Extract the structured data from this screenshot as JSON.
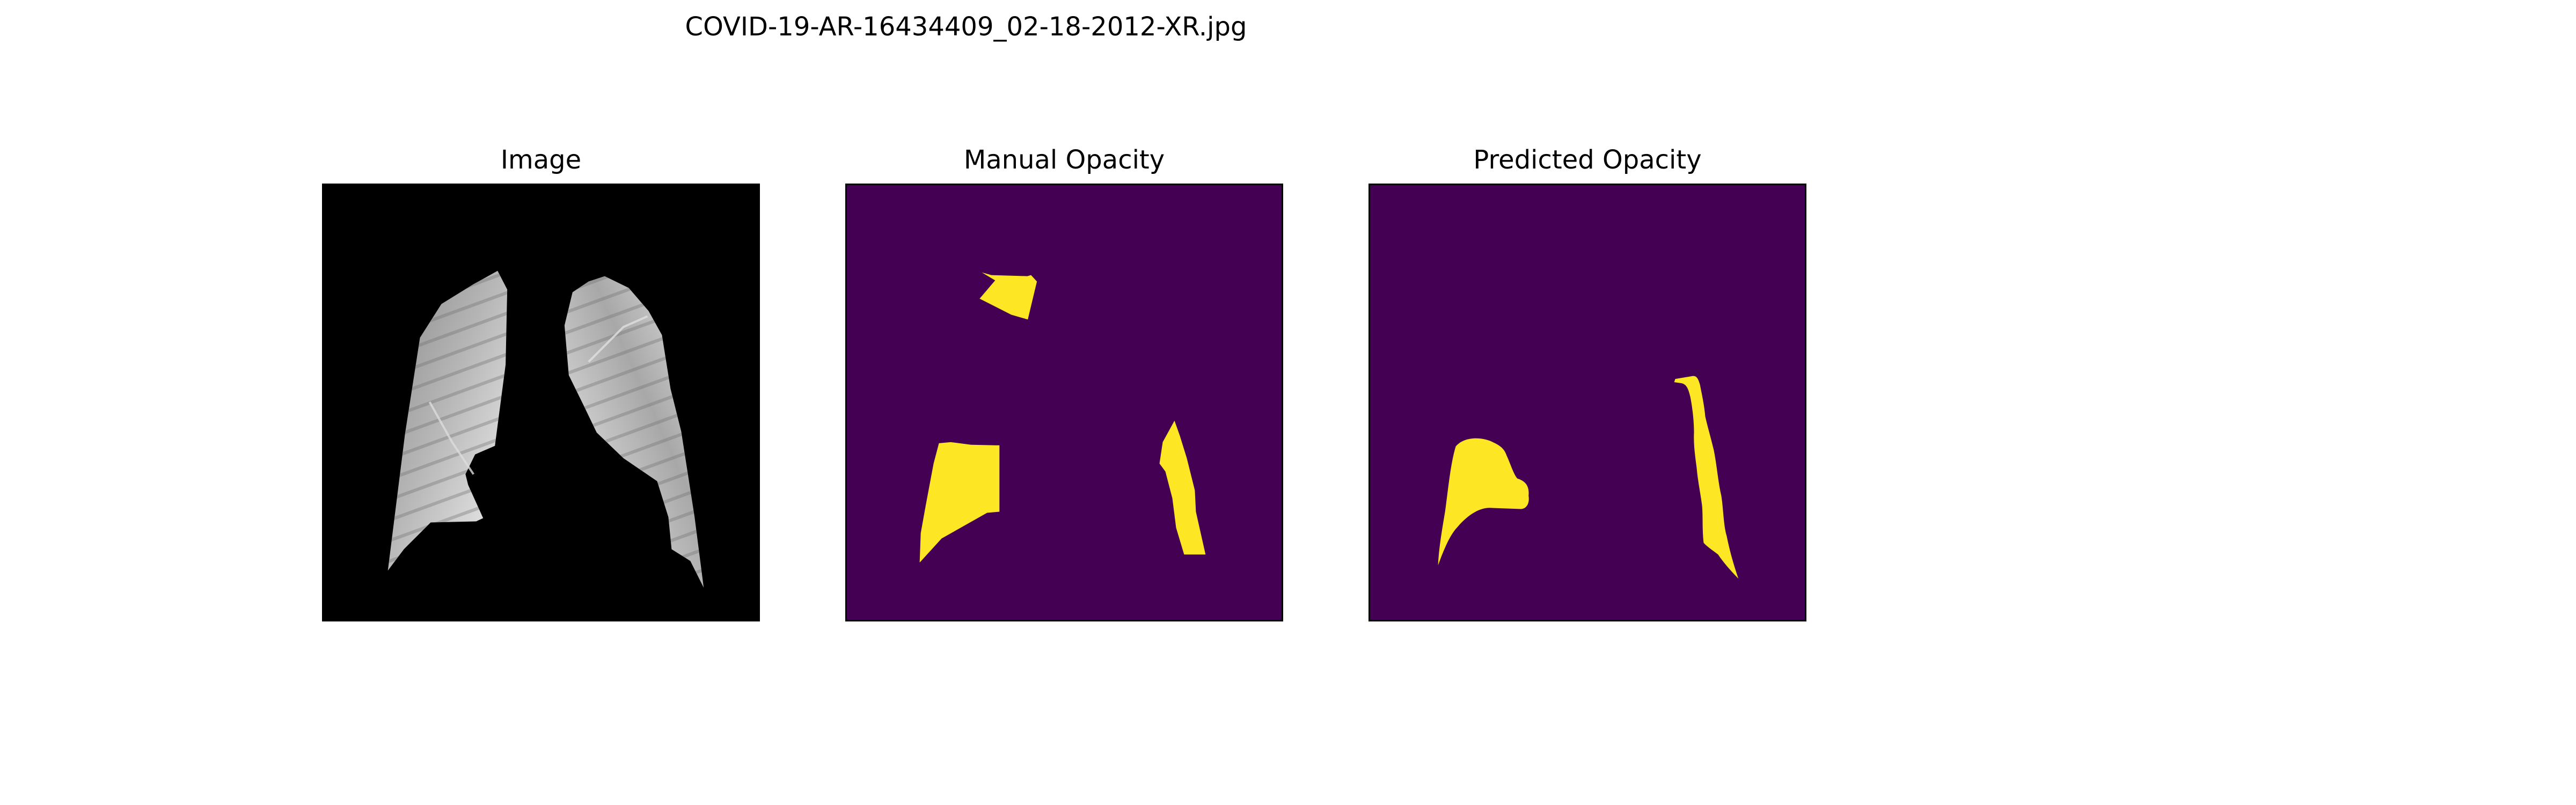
{
  "figure": {
    "title": "COVID-19-AR-16434409_02-18-2012-XR.jpg"
  },
  "panels": [
    {
      "title": "Image",
      "content": "segmented chest x-ray lung fields"
    },
    {
      "title": "Manual Opacity",
      "content": "binary opacity mask"
    },
    {
      "title": "Predicted Opacity",
      "content": "binary opacity mask"
    }
  ],
  "colors": {
    "image_background": "#000000",
    "mask_background": "#440154",
    "mask_foreground": "#fde725",
    "axes_frame": "#000000"
  }
}
